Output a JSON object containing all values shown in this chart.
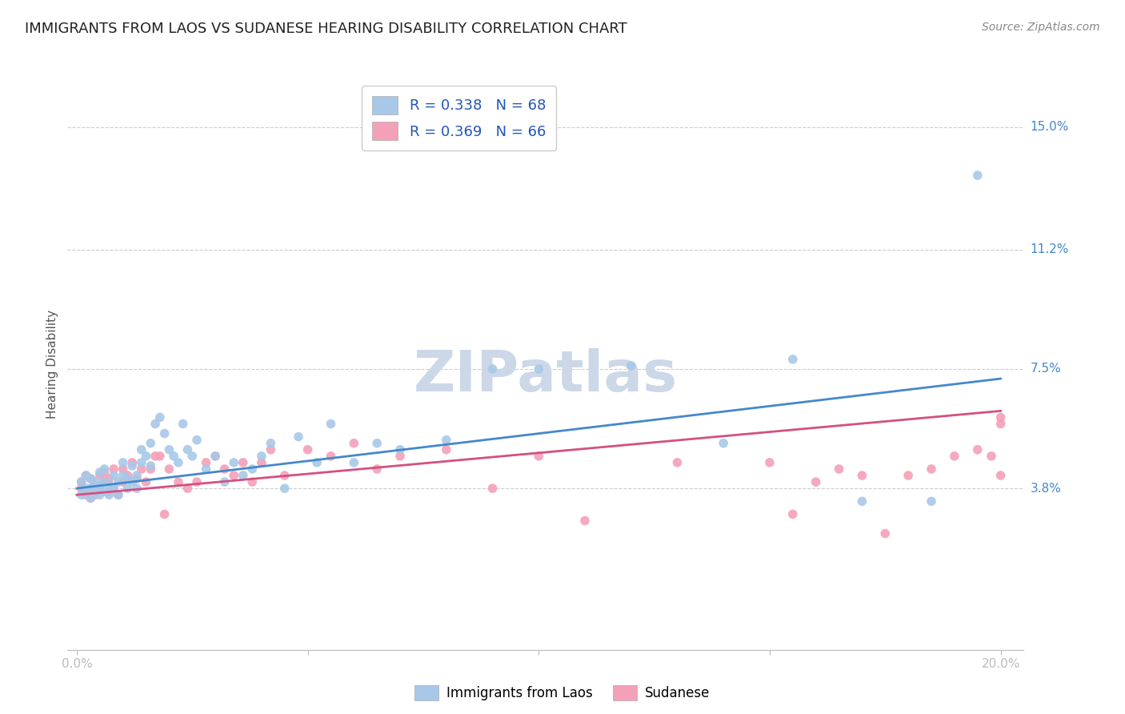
{
  "title": "IMMIGRANTS FROM LAOS VS SUDANESE HEARING DISABILITY CORRELATION CHART",
  "source": "Source: ZipAtlas.com",
  "ylabel": "Hearing Disability",
  "ytick_labels": [
    "3.8%",
    "7.5%",
    "11.2%",
    "15.0%"
  ],
  "ytick_values": [
    0.038,
    0.075,
    0.112,
    0.15
  ],
  "xtick_values": [
    0.0,
    0.05,
    0.1,
    0.15,
    0.2
  ],
  "xtick_labels": [
    "0.0%",
    "",
    "",
    "",
    "20.0%"
  ],
  "xlim": [
    -0.002,
    0.205
  ],
  "ylim": [
    -0.012,
    0.165
  ],
  "legend_label_blue": "Immigrants from Laos",
  "legend_label_pink": "Sudanese",
  "blue_color": "#a8c8e8",
  "pink_color": "#f4a0b8",
  "blue_line_color": "#4488cc",
  "pink_line_color": "#d45080",
  "watermark_text": "ZIPatlas",
  "blue_scatter_x": [
    0.001,
    0.001,
    0.002,
    0.002,
    0.003,
    0.003,
    0.003,
    0.004,
    0.004,
    0.005,
    0.005,
    0.005,
    0.006,
    0.006,
    0.006,
    0.007,
    0.007,
    0.008,
    0.008,
    0.009,
    0.009,
    0.01,
    0.01,
    0.011,
    0.011,
    0.012,
    0.012,
    0.013,
    0.013,
    0.014,
    0.014,
    0.015,
    0.016,
    0.016,
    0.017,
    0.018,
    0.019,
    0.02,
    0.021,
    0.022,
    0.023,
    0.024,
    0.025,
    0.026,
    0.028,
    0.03,
    0.032,
    0.034,
    0.036,
    0.038,
    0.04,
    0.042,
    0.045,
    0.048,
    0.052,
    0.055,
    0.06,
    0.065,
    0.07,
    0.08,
    0.09,
    0.1,
    0.12,
    0.14,
    0.155,
    0.17,
    0.185,
    0.195
  ],
  "blue_scatter_y": [
    0.036,
    0.04,
    0.038,
    0.042,
    0.035,
    0.038,
    0.041,
    0.037,
    0.04,
    0.036,
    0.039,
    0.043,
    0.037,
    0.04,
    0.044,
    0.036,
    0.039,
    0.038,
    0.042,
    0.036,
    0.04,
    0.042,
    0.046,
    0.038,
    0.041,
    0.04,
    0.045,
    0.038,
    0.042,
    0.046,
    0.05,
    0.048,
    0.052,
    0.045,
    0.058,
    0.06,
    0.055,
    0.05,
    0.048,
    0.046,
    0.058,
    0.05,
    0.048,
    0.053,
    0.044,
    0.048,
    0.04,
    0.046,
    0.042,
    0.044,
    0.048,
    0.052,
    0.038,
    0.054,
    0.046,
    0.058,
    0.046,
    0.052,
    0.05,
    0.053,
    0.075,
    0.075,
    0.076,
    0.052,
    0.078,
    0.034,
    0.034,
    0.135
  ],
  "pink_scatter_x": [
    0.001,
    0.001,
    0.002,
    0.002,
    0.003,
    0.003,
    0.003,
    0.004,
    0.004,
    0.005,
    0.005,
    0.006,
    0.006,
    0.007,
    0.007,
    0.008,
    0.008,
    0.009,
    0.01,
    0.01,
    0.011,
    0.012,
    0.013,
    0.014,
    0.015,
    0.016,
    0.017,
    0.018,
    0.019,
    0.02,
    0.022,
    0.024,
    0.026,
    0.028,
    0.03,
    0.032,
    0.034,
    0.036,
    0.038,
    0.04,
    0.042,
    0.045,
    0.05,
    0.055,
    0.06,
    0.065,
    0.07,
    0.08,
    0.09,
    0.1,
    0.11,
    0.13,
    0.15,
    0.155,
    0.16,
    0.165,
    0.17,
    0.175,
    0.18,
    0.185,
    0.19,
    0.195,
    0.198,
    0.2,
    0.2,
    0.2
  ],
  "pink_scatter_y": [
    0.04,
    0.038,
    0.042,
    0.036,
    0.038,
    0.041,
    0.035,
    0.039,
    0.036,
    0.042,
    0.038,
    0.04,
    0.043,
    0.037,
    0.041,
    0.038,
    0.044,
    0.036,
    0.04,
    0.044,
    0.042,
    0.046,
    0.041,
    0.044,
    0.04,
    0.044,
    0.048,
    0.048,
    0.03,
    0.044,
    0.04,
    0.038,
    0.04,
    0.046,
    0.048,
    0.044,
    0.042,
    0.046,
    0.04,
    0.046,
    0.05,
    0.042,
    0.05,
    0.048,
    0.052,
    0.044,
    0.048,
    0.05,
    0.038,
    0.048,
    0.028,
    0.046,
    0.046,
    0.03,
    0.04,
    0.044,
    0.042,
    0.024,
    0.042,
    0.044,
    0.048,
    0.05,
    0.048,
    0.058,
    0.042,
    0.06
  ],
  "blue_trend": [
    0.038,
    0.072
  ],
  "pink_trend": [
    0.036,
    0.062
  ],
  "background_color": "#ffffff",
  "grid_color": "#cccccc",
  "title_fontsize": 13,
  "axis_label_fontsize": 11,
  "tick_fontsize": 11,
  "source_fontsize": 10,
  "watermark_color": "#ccd8e8",
  "watermark_fontsize": 52,
  "legend_entry_blue": "R = 0.338   N = 68",
  "legend_entry_pink": "R = 0.369   N = 66"
}
